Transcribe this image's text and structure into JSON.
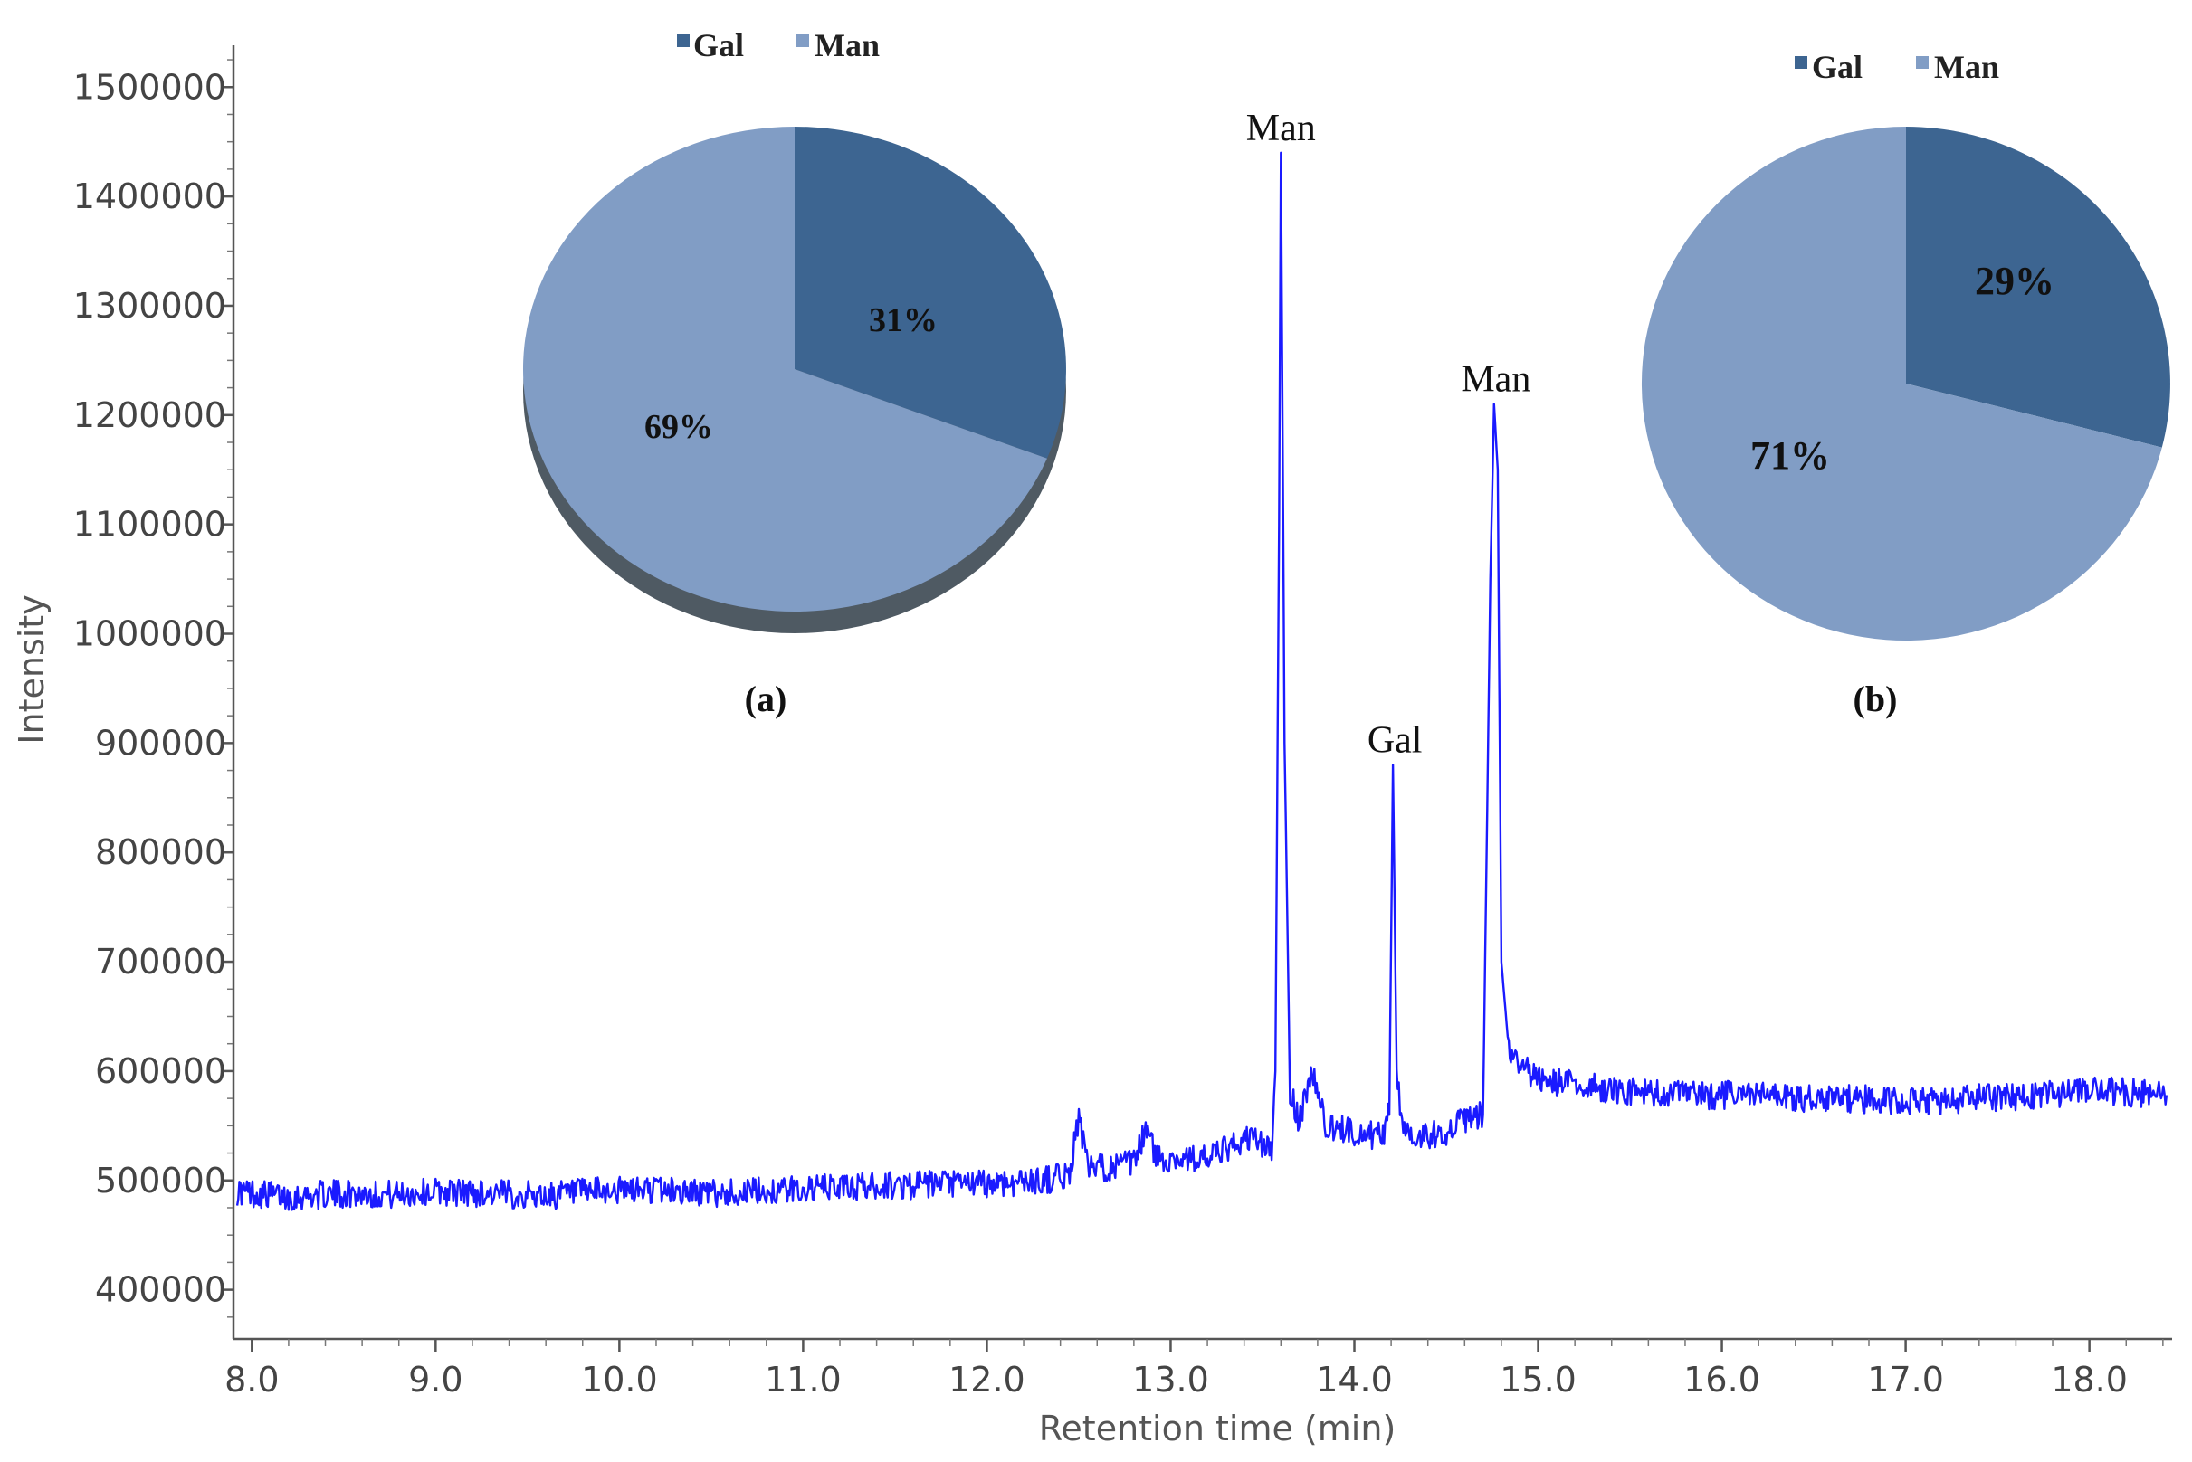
{
  "chart_data": [
    {
      "type": "line",
      "title": "",
      "xlabel": "Retention time (min)",
      "ylabel": "Intensity",
      "xlim": [
        7.9,
        18.45
      ],
      "ylim": [
        355000,
        1530000
      ],
      "xticks": [
        8.0,
        9.0,
        10.0,
        11.0,
        12.0,
        13.0,
        14.0,
        15.0,
        16.0,
        17.0,
        18.0
      ],
      "xtick_labels": [
        "8.0",
        "9.0",
        "10.0",
        "11.0",
        "12.0",
        "13.0",
        "14.0",
        "15.0",
        "16.0",
        "17.0",
        "18.0"
      ],
      "yticks": [
        400000,
        500000,
        600000,
        700000,
        800000,
        900000,
        1000000,
        1100000,
        1200000,
        1300000,
        1400000,
        1500000
      ],
      "ytick_labels": [
        "400000",
        "500000",
        "600000",
        "700000",
        "800000",
        "900000",
        "1000000",
        "1100000",
        "1200000",
        "1300000",
        "1400000",
        "1500000"
      ],
      "grid": false,
      "series": [
        {
          "color": "#1a1aff",
          "x": [
            7.92,
            8.2,
            8.5,
            8.8,
            9.0,
            9.3,
            9.6,
            9.9,
            10.2,
            10.5,
            10.8,
            11.1,
            11.4,
            11.7,
            12.0,
            12.3,
            12.45,
            12.5,
            12.55,
            12.8,
            12.87,
            12.92,
            13.2,
            13.45,
            13.55,
            13.57,
            13.59,
            13.6,
            13.62,
            13.65,
            13.7,
            13.77,
            13.85,
            14.0,
            14.15,
            14.19,
            14.21,
            14.23,
            14.26,
            14.35,
            14.5,
            14.6,
            14.7,
            14.74,
            14.76,
            14.78,
            14.8,
            14.84,
            14.9,
            15.0,
            15.3,
            15.6,
            15.9,
            16.2,
            16.5,
            16.8,
            17.1,
            17.4,
            17.7,
            18.0,
            18.3,
            18.42
          ],
          "y": [
            490000,
            485000,
            488000,
            487000,
            490000,
            488000,
            486000,
            490000,
            492000,
            488000,
            490000,
            493000,
            495000,
            496000,
            497000,
            500000,
            505000,
            560000,
            510000,
            515000,
            550000,
            520000,
            520000,
            540000,
            525000,
            600000,
            1100000,
            1440000,
            900000,
            580000,
            555000,
            600000,
            548000,
            545000,
            540000,
            560000,
            880000,
            600000,
            550000,
            540000,
            545000,
            555000,
            560000,
            1050000,
            1210000,
            1150000,
            700000,
            620000,
            605000,
            592000,
            585000,
            580000,
            578000,
            578000,
            575000,
            574000,
            572000,
            575000,
            578000,
            582000,
            580000,
            578000
          ]
        }
      ],
      "annotations": [
        {
          "text": "Man",
          "x": 13.6,
          "y": 1440000
        },
        {
          "text": "Gal",
          "x": 14.22,
          "y": 880000
        },
        {
          "text": "Man",
          "x": 14.77,
          "y": 1210000
        }
      ]
    },
    {
      "type": "pie",
      "panel_label": "(a)",
      "legend": [
        {
          "label": "Gal",
          "color": "#3d6591"
        },
        {
          "label": "Man",
          "color": "#819dc5"
        }
      ],
      "slices": [
        {
          "label": "Gal",
          "value": 31,
          "text": "31%",
          "color": "#3d6591"
        },
        {
          "label": "Man",
          "value": 69,
          "text": "69%",
          "color": "#819dc5"
        }
      ]
    },
    {
      "type": "pie",
      "panel_label": "(b)",
      "legend": [
        {
          "label": "Gal",
          "color": "#3d6591"
        },
        {
          "label": "Man",
          "color": "#819dc5"
        }
      ],
      "slices": [
        {
          "label": "Gal",
          "value": 29,
          "text": "29%",
          "color": "#3d6591"
        },
        {
          "label": "Man",
          "value": 71,
          "text": "71%",
          "color": "#819dc5"
        }
      ]
    }
  ]
}
